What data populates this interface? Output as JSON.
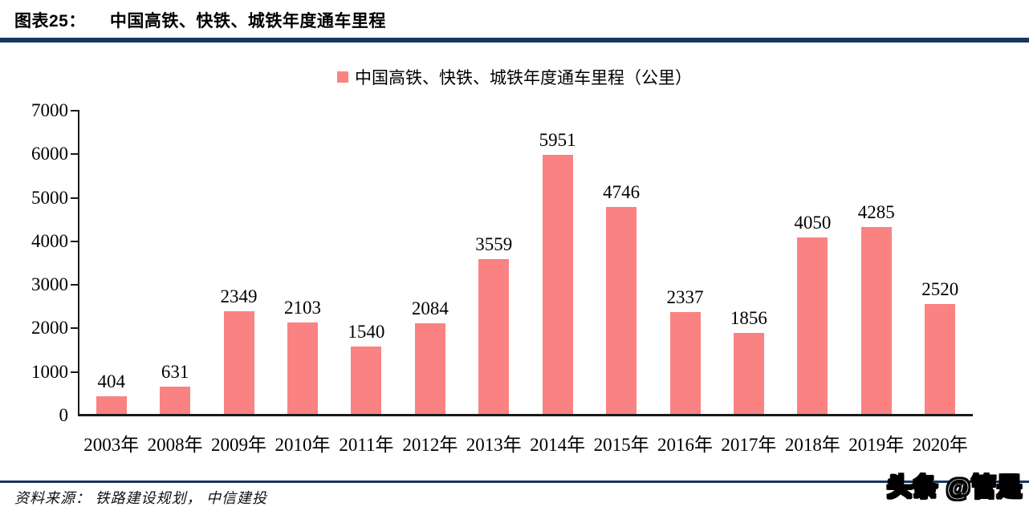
{
  "header": {
    "tag": "图表25：",
    "title": "中国高铁、快铁、城铁年度通车里程"
  },
  "legend": {
    "label": "中国高铁、快铁、城铁年度通车里程（公里）",
    "marker_color": "#FA8282"
  },
  "chart_data": {
    "type": "bar",
    "title": "中国高铁、快铁、城铁年度通车里程（公里）",
    "categories": [
      "2003年",
      "2008年",
      "2009年",
      "2010年",
      "2011年",
      "2012年",
      "2013年",
      "2014年",
      "2015年",
      "2016年",
      "2017年",
      "2018年",
      "2019年",
      "2020年"
    ],
    "values": [
      404,
      631,
      2349,
      2103,
      1540,
      2084,
      3559,
      5951,
      4746,
      2337,
      1856,
      4050,
      4285,
      2520
    ],
    "xlabel": "",
    "ylabel": "",
    "ylim": [
      0,
      7000
    ],
    "ytick_step": 1000,
    "bar_color": "#FA8282",
    "grid": false,
    "value_labels": true,
    "legend_position": "top-center"
  },
  "footer": {
    "source": "资料来源： 铁路建设规划， 中信建投"
  },
  "watermark": {
    "text": "头条 @管是"
  },
  "colors": {
    "rule": "#17375E",
    "bar": "#FA8282",
    "axis": "#1A1A1A",
    "text": "#000000"
  }
}
